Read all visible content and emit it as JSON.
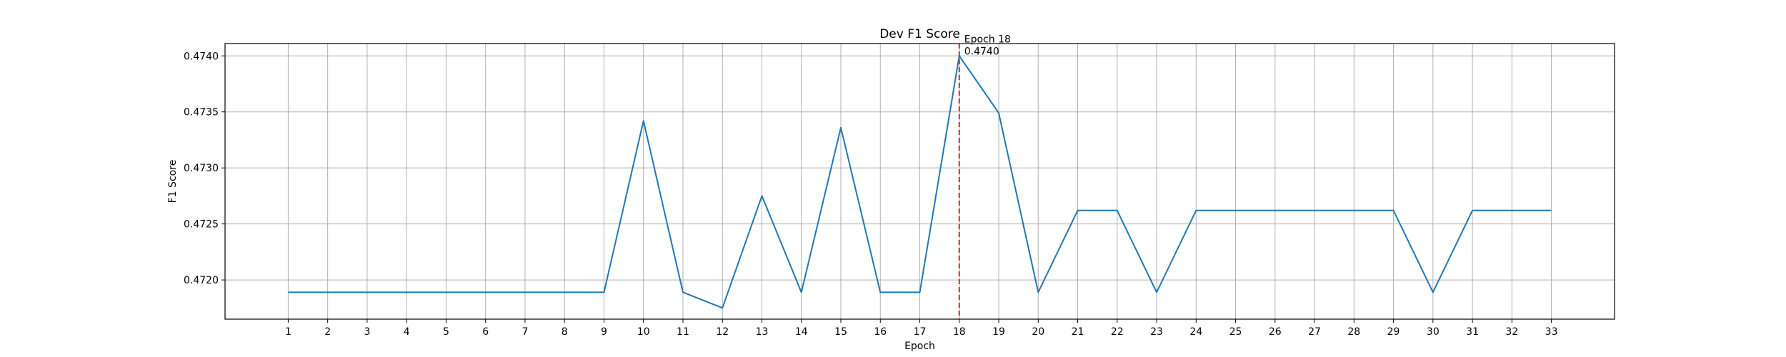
{
  "chart_data": {
    "type": "line",
    "title": "Dev F1 Score",
    "xlabel": "Epoch",
    "ylabel": "F1 Score",
    "x": [
      1,
      2,
      3,
      4,
      5,
      6,
      7,
      8,
      9,
      10,
      11,
      12,
      13,
      14,
      15,
      16,
      17,
      18,
      19,
      20,
      21,
      22,
      23,
      24,
      25,
      26,
      27,
      28,
      29,
      30,
      31,
      32,
      33
    ],
    "series": [
      {
        "color": "#1f77b4",
        "values": [
          0.47189,
          0.47189,
          0.47189,
          0.47189,
          0.47189,
          0.47189,
          0.47189,
          0.47189,
          0.47189,
          0.47342,
          0.47189,
          0.47175,
          0.47275,
          0.47189,
          0.47336,
          0.47189,
          0.47189,
          0.474,
          0.47349,
          0.47189,
          0.47262,
          0.47262,
          0.47189,
          0.47262,
          0.47262,
          0.47262,
          0.47262,
          0.47262,
          0.47262,
          0.47189,
          0.47262,
          0.47262,
          0.47262
        ]
      }
    ],
    "xlim": [
      -0.6,
      34.6
    ],
    "ylim": [
      0.47165,
      0.47411
    ],
    "yticks": [
      "0.4720",
      "0.4725",
      "0.4730",
      "0.4735",
      "0.4740"
    ],
    "ytick_values": [
      0.472,
      0.4725,
      0.473,
      0.4735,
      0.474
    ],
    "grid": true,
    "marker_line": {
      "x": 18,
      "color": "#d62728",
      "style": "dashed"
    },
    "annotation": {
      "line1": "Epoch 18",
      "line2": "0.4740",
      "x": 18,
      "y": 0.474
    }
  }
}
